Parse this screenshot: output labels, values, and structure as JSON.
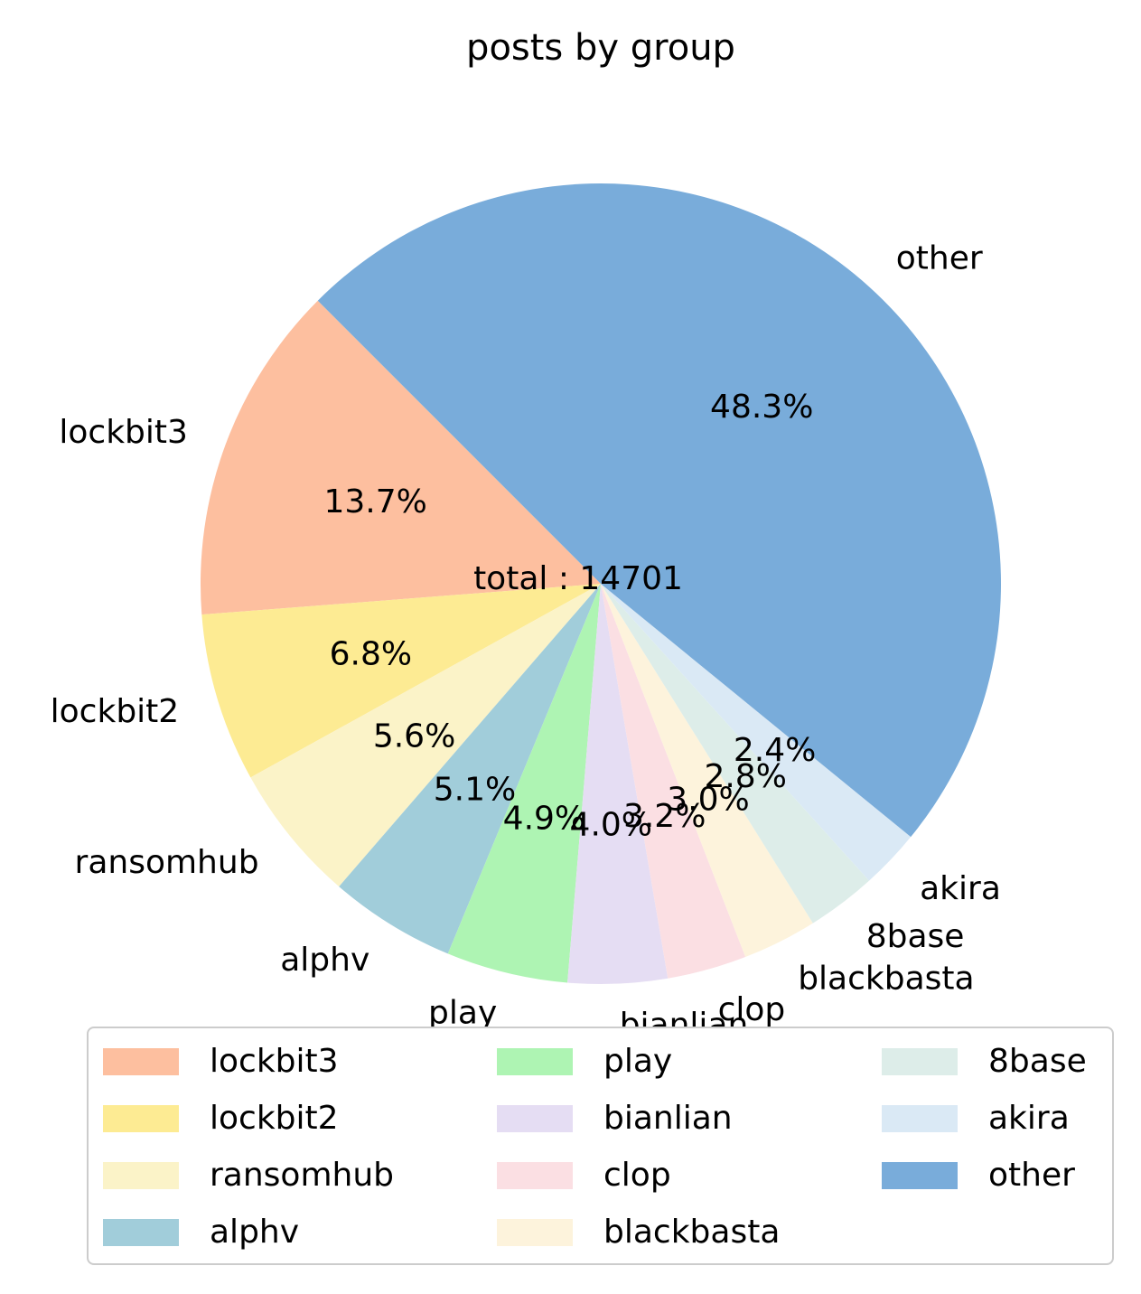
{
  "chart_data": {
    "type": "pie",
    "title": "posts by group",
    "center_text": "total : 14701",
    "categories": [
      "lockbit3",
      "lockbit2",
      "ransomhub",
      "alphv",
      "play",
      "bianlian",
      "clop",
      "blackbasta",
      "8base",
      "akira",
      "other"
    ],
    "values": [
      13.7,
      6.8,
      5.6,
      5.1,
      4.9,
      4.0,
      3.2,
      3.0,
      2.8,
      2.4,
      48.3
    ],
    "value_labels": [
      "13.7%",
      "6.8%",
      "5.6%",
      "5.1%",
      "4.9%",
      "4.0%",
      "3.2%",
      "3.0%",
      "2.8%",
      "2.4%",
      "48.3%"
    ],
    "colors": [
      "#fdbf9f",
      "#fdeb93",
      "#fbf3c8",
      "#a1cdda",
      "#aef4b3",
      "#e5ddf3",
      "#fbdfe3",
      "#fdf3dc",
      "#ddede9",
      "#dae9f5",
      "#79acda"
    ],
    "start_angle_deg": 135,
    "legend_position": "bottom",
    "legend_columns": 3
  }
}
